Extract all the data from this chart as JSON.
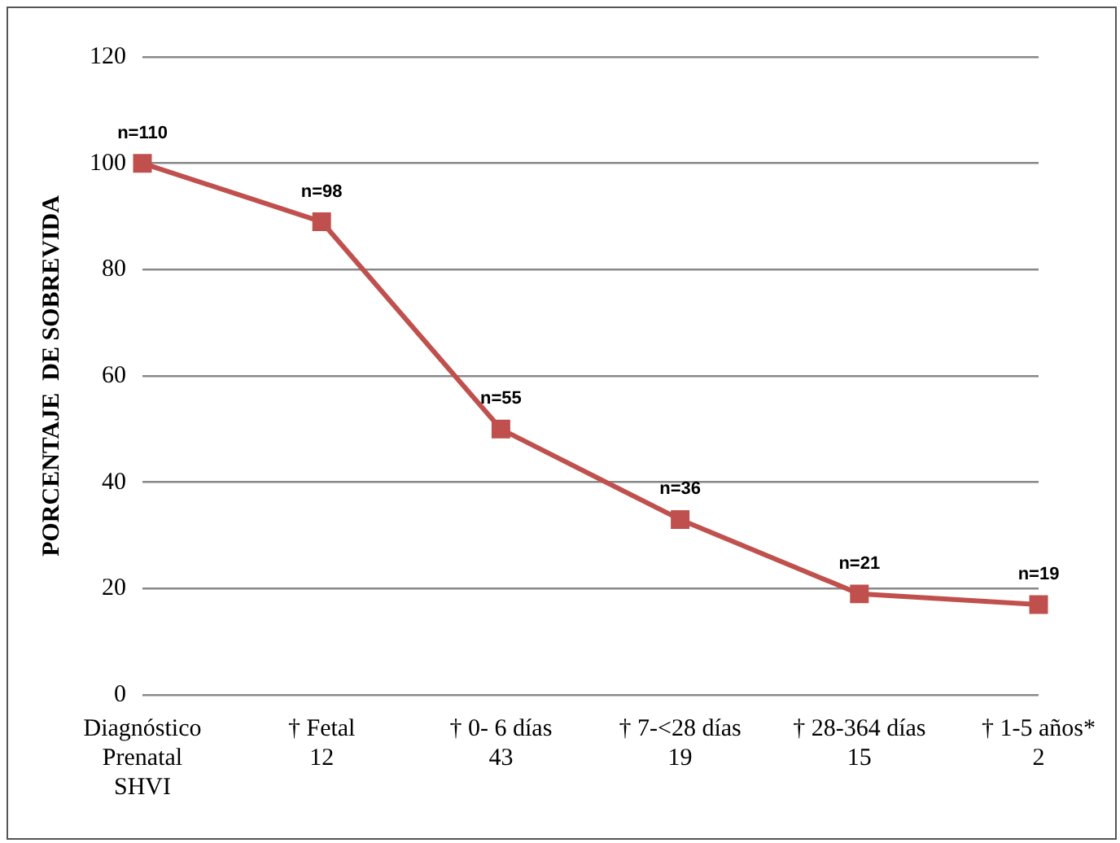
{
  "chart_data": {
    "type": "line",
    "ylabel": "PORCENTAJE  DE SOBREVIDA",
    "categories": [
      "Diagnóstico\nPrenatal\nSHVI",
      "† Fetal\n12",
      "† 0- 6 días\n43",
      "† 7-<28 días\n19",
      "† 28-364 días\n15",
      "† 1-5 años*\n2"
    ],
    "series": [
      {
        "color": "#c0504d",
        "values": [
          100,
          89,
          50,
          33,
          19,
          17
        ]
      }
    ],
    "annotations": [
      {
        "text": "n=110",
        "x": "Diagnóstico\nPrenatal\nSHVI",
        "y": 100
      },
      {
        "text": "n=98",
        "x": "† Fetal\n12",
        "y": 89
      },
      {
        "text": "n=55",
        "x": "† 0- 6 días\n43",
        "y": 50
      },
      {
        "text": "n=36",
        "x": "† 7-<28 días\n19",
        "y": 33
      },
      {
        "text": "n=21",
        "x": "† 28-364 días\n15",
        "y": 19
      },
      {
        "text": "n=19",
        "x": "† 1-5 años*\n2",
        "y": 17
      }
    ],
    "ylim": [
      0,
      120
    ],
    "yticks": [
      0,
      20,
      40,
      60,
      80,
      100,
      120
    ],
    "grid": "y",
    "legend": false,
    "marker": "square",
    "line_style": "solid"
  }
}
